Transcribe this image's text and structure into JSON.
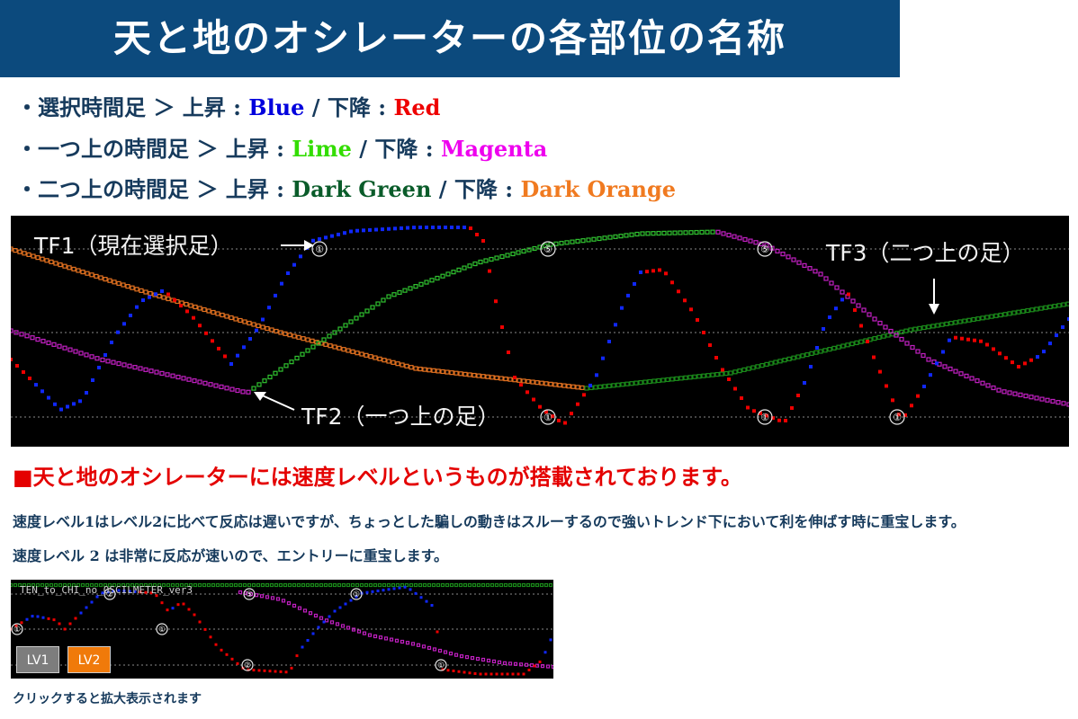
{
  "title": "天と地のオシレーターの各部位の名称",
  "legend": [
    {
      "prefix": "・選択時間足 ＞ 上昇 : ",
      "up": "Blue",
      "sep": " / 下降 : ",
      "down": "Red",
      "up_color": "#0000dd",
      "down_color": "#ee0000"
    },
    {
      "prefix": "・一つ上の時間足 ＞ 上昇 : ",
      "up": "Lime",
      "sep": " / 下降 : ",
      "down": "Magenta",
      "up_color": "#33dd00",
      "down_color": "#ee00ee"
    },
    {
      "prefix": "・二つ上の時間足 ＞ 上昇 : ",
      "up": "Dark Green",
      "sep": " / 下降 : ",
      "down": "Dark Orange",
      "up_color": "#0a5c2a",
      "down_color": "#f07a20"
    }
  ],
  "main_chart": {
    "annotations": {
      "tf1": "TF1（現在選択足）",
      "tf2": "TF2（一つ上の足）",
      "tf3": "TF3（二つ上の足）"
    },
    "markers": [
      "①",
      "⑤",
      "⑤",
      "①",
      "①",
      "①"
    ]
  },
  "headline": "■天と地のオシレーターには速度レベルというものが搭載されております。",
  "paragraphs": [
    "速度レベル1はレベル2に比べて反応は遅いですが、ちょっとした騙しの動きはスルーするので強いトレンド下において利を伸ばす時に重宝します。",
    "速度レベル 2 は非常に反応が速いので、エントリーに重宝します。"
  ],
  "mini_chart": {
    "indicator_label": "TEN_to_CHI_no_OSCILMETER_ver3",
    "buttons": [
      {
        "label": "LV1",
        "color": "#7d7d7d"
      },
      {
        "label": "LV2",
        "color": "#f07a0a"
      }
    ],
    "markers": [
      "②",
      "⑤",
      "①",
      "①",
      "①",
      "②",
      "①"
    ]
  },
  "caption": "クリックすると拡大表示されます"
}
